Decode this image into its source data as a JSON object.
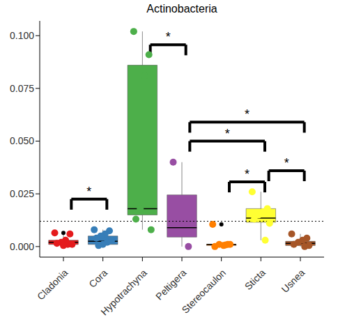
{
  "chart_data": {
    "type": "box",
    "title": "Actinobacteria",
    "categories": [
      "Cladonia",
      "Cora",
      "Hypotrachyna",
      "Peltigera",
      "Stereocaulon",
      "Sticta",
      "Usnea"
    ],
    "ylim": [
      -0.005,
      0.107
    ],
    "yticks": [
      {
        "value": 0,
        "label": "0.000"
      },
      {
        "value": 0.025,
        "label": "0.025"
      },
      {
        "value": 0.05,
        "label": "0.050"
      },
      {
        "value": 0.075,
        "label": "0.075"
      },
      {
        "value": 0.1,
        "label": "0.100"
      }
    ],
    "grid": false,
    "reference_line": {
      "y": 0.012,
      "line_style": "dotted"
    },
    "series": [
      {
        "name": "Cladonia",
        "color": "#E41A1C",
        "min": 0,
        "q1": 0.001,
        "median": 0.002,
        "q3": 0.003,
        "max": 0.006,
        "points": [
          0.0065,
          0.006,
          0.003,
          0.002,
          0.0015,
          0.001,
          0.001,
          0.0005
        ],
        "outliers": [
          0.0065
        ]
      },
      {
        "name": "Cora",
        "color": "#377EB8",
        "min": 0,
        "q1": 0.001,
        "median": 0.0025,
        "q3": 0.005,
        "max": 0.008,
        "points": [
          0.008,
          0.0075,
          0.006,
          0.005,
          0.004,
          0.003,
          0.002,
          0.001,
          0.0005
        ],
        "outliers": []
      },
      {
        "name": "Hypotrachyna",
        "color": "#4DAF4A",
        "min": 0.008,
        "q1": 0.015,
        "median": 0.018,
        "q3": 0.086,
        "max": 0.102,
        "points": [
          0.102,
          0.091,
          0.081,
          0.018,
          0.013,
          0.008
        ],
        "outliers": []
      },
      {
        "name": "Peltigera",
        "color": "#984EA3",
        "min": 0,
        "q1": 0.0045,
        "median": 0.009,
        "q3": 0.0245,
        "max": 0.04,
        "points": [
          0.04,
          0
        ],
        "outliers": []
      },
      {
        "name": "Stereocaulon",
        "color": "#FF7F00",
        "min": 0,
        "q1": 0.0005,
        "median": 0.001,
        "q3": 0.001,
        "max": 0.0015,
        "points": [
          0.0105,
          0.001,
          0.0005,
          0.001,
          0,
          0.001,
          0.0008
        ],
        "outliers": [
          0.0105
        ]
      },
      {
        "name": "Sticta",
        "color": "#FFFF33",
        "min": 0.003,
        "q1": 0.0115,
        "median": 0.0135,
        "q3": 0.018,
        "max": 0.026,
        "points": [
          0.026,
          0.018,
          0.0165,
          0.015,
          0.013,
          0.011,
          0.003
        ],
        "outliers": []
      },
      {
        "name": "Usnea",
        "color": "#A65628",
        "min": 0,
        "q1": 0.0005,
        "median": 0.0015,
        "q3": 0.0025,
        "max": 0.006,
        "points": [
          0.006,
          0.004,
          0.003,
          0.002,
          0.001,
          0.0005,
          0
        ],
        "outliers": []
      }
    ],
    "annotations": [
      {
        "text": "*",
        "from": "Cladonia",
        "to": "Cora",
        "y": 0.0225
      },
      {
        "text": "*",
        "from": "Hypotrachyna",
        "to": "Peltigera",
        "y": 0.0957
      },
      {
        "text": "*",
        "from": "Peltigera",
        "to": "Usnea",
        "y": 0.059
      },
      {
        "text": "*",
        "from": "Peltigera",
        "to": "Sticta",
        "y": 0.05
      },
      {
        "text": "*",
        "from": "Stereocaulon",
        "to": "Sticta",
        "y": 0.0307
      },
      {
        "text": "*",
        "from": "Sticta",
        "to": "Usnea",
        "y": 0.036
      }
    ]
  }
}
